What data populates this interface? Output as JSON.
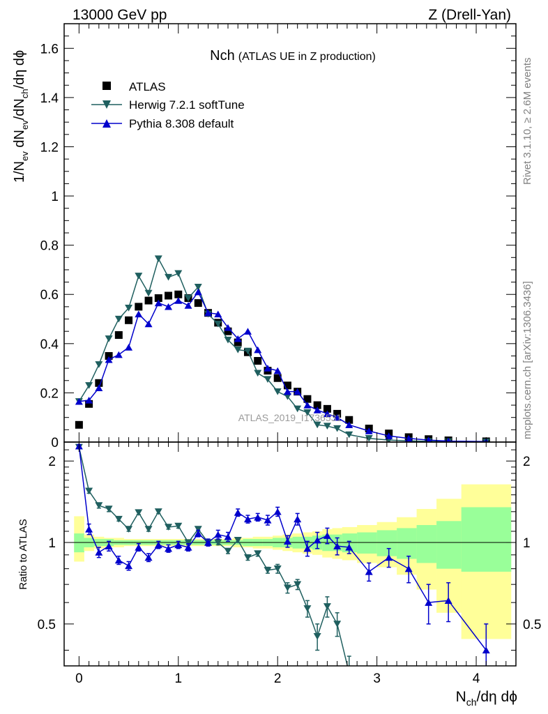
{
  "header": {
    "energy": "13000 GeV pp",
    "process": "Z (Drell-Yan)"
  },
  "side": {
    "rivet": "Rivet 3.1.10, ≥ 2.6M events",
    "mcplots": "mcplots.cern.ch [arXiv:1306.3436]"
  },
  "colors": {
    "atlas": "#000000",
    "herwig": "#1f5f5f",
    "pythia": "#0000cc",
    "band_outer": "#ffff99",
    "band_inner": "#99ff99"
  },
  "chart_data": [
    {
      "type": "line",
      "panel": "main",
      "title": "Nch",
      "subtitle": "(ATLAS UE in Z production)",
      "watermark": "ATLAS_2019_I1736531",
      "ylabel_parts": [
        "1/N",
        "ev",
        " dN",
        "ev",
        "/dN",
        "ch",
        "/dη dϕ"
      ],
      "xlabel_parts": [
        "N",
        "ch",
        "/dη dϕ"
      ],
      "xlim": [
        -0.15,
        4.4
      ],
      "ylim": [
        0,
        1.7
      ],
      "yticks": [
        0,
        0.2,
        0.4,
        0.6,
        0.8,
        1,
        1.2,
        1.4,
        1.6
      ],
      "ytick_labels": [
        "0",
        "0.2",
        "0.4",
        "0.6",
        "0.8",
        "1",
        "1.2",
        "1.4",
        "1.6"
      ],
      "xticks": [
        0,
        1,
        2,
        3,
        4
      ],
      "xtick_labels": [
        "0",
        "1",
        "2",
        "3",
        "4"
      ],
      "legend": [
        "ATLAS",
        "Herwig 7.2.1 softTune",
        "Pythia 8.308 default"
      ],
      "series": [
        {
          "name": "ATLAS",
          "x": [
            0,
            0.1,
            0.2,
            0.3,
            0.4,
            0.5,
            0.6,
            0.7,
            0.8,
            0.9,
            1.0,
            1.1,
            1.2,
            1.3,
            1.4,
            1.5,
            1.6,
            1.7,
            1.8,
            1.9,
            2.0,
            2.1,
            2.2,
            2.3,
            2.4,
            2.5,
            2.6,
            2.72,
            2.92,
            3.12,
            3.32,
            3.52,
            3.72,
            4.1
          ],
          "y": [
            0.07,
            0.155,
            0.24,
            0.35,
            0.435,
            0.495,
            0.55,
            0.575,
            0.585,
            0.595,
            0.6,
            0.585,
            0.565,
            0.525,
            0.485,
            0.45,
            0.405,
            0.365,
            0.33,
            0.29,
            0.26,
            0.23,
            0.205,
            0.175,
            0.15,
            0.135,
            0.115,
            0.09,
            0.055,
            0.035,
            0.02,
            0.012,
            0.007,
            0.003
          ]
        },
        {
          "name": "Herwig 7.2.1 softTune",
          "x": [
            0,
            0.1,
            0.2,
            0.3,
            0.4,
            0.5,
            0.6,
            0.7,
            0.8,
            0.9,
            1.0,
            1.1,
            1.2,
            1.3,
            1.4,
            1.5,
            1.6,
            1.7,
            1.8,
            1.9,
            2.0,
            2.1,
            2.2,
            2.3,
            2.4,
            2.5,
            2.6,
            2.72,
            2.92,
            3.12,
            3.32,
            3.52,
            3.72,
            4.1
          ],
          "y": [
            0.165,
            0.23,
            0.315,
            0.42,
            0.5,
            0.545,
            0.675,
            0.605,
            0.745,
            0.67,
            0.685,
            0.585,
            0.63,
            0.52,
            0.48,
            0.415,
            0.375,
            0.37,
            0.28,
            0.255,
            0.205,
            0.185,
            0.135,
            0.12,
            0.07,
            0.065,
            0.055,
            0.03,
            0.015,
            0.008,
            0.005,
            0.003,
            0.002,
            0.001
          ]
        },
        {
          "name": "Pythia 8.308 default",
          "x": [
            0,
            0.1,
            0.2,
            0.3,
            0.4,
            0.5,
            0.6,
            0.7,
            0.8,
            0.9,
            1.0,
            1.1,
            1.2,
            1.3,
            1.4,
            1.5,
            1.6,
            1.7,
            1.8,
            1.9,
            2.0,
            2.1,
            2.2,
            2.3,
            2.4,
            2.5,
            2.6,
            2.72,
            2.92,
            3.12,
            3.32,
            3.52,
            3.72,
            4.1
          ],
          "y": [
            0.165,
            0.17,
            0.22,
            0.335,
            0.355,
            0.385,
            0.52,
            0.48,
            0.565,
            0.55,
            0.575,
            0.555,
            0.61,
            0.525,
            0.52,
            0.465,
            0.42,
            0.45,
            0.375,
            0.3,
            0.29,
            0.205,
            0.205,
            0.15,
            0.13,
            0.115,
            0.1,
            0.07,
            0.045,
            0.025,
            0.015,
            0.008,
            0.004,
            0.002
          ]
        }
      ]
    },
    {
      "type": "line",
      "panel": "ratio",
      "ylabel": "Ratio to ATLAS",
      "xlim": [
        -0.15,
        4.4
      ],
      "ylim": [
        0.35,
        2.35
      ],
      "yticks": [
        0.5,
        1,
        2
      ],
      "ytick_labels": [
        "0.5",
        "1",
        "2"
      ],
      "reference": 1,
      "bands": {
        "edges": [
          -0.05,
          0.05,
          0.15,
          0.25,
          0.35,
          0.45,
          0.55,
          0.65,
          0.75,
          0.85,
          0.95,
          1.05,
          1.15,
          1.25,
          1.35,
          1.45,
          1.55,
          1.65,
          1.75,
          1.85,
          1.95,
          2.05,
          2.15,
          2.25,
          2.35,
          2.45,
          2.55,
          2.65,
          2.8,
          3.0,
          3.2,
          3.4,
          3.6,
          3.85,
          4.35
        ],
        "outer_lo": [
          0.85,
          0.93,
          0.95,
          0.96,
          0.96,
          0.97,
          0.97,
          0.97,
          0.97,
          0.97,
          0.97,
          0.97,
          0.97,
          0.97,
          0.97,
          0.97,
          0.96,
          0.96,
          0.95,
          0.95,
          0.94,
          0.93,
          0.92,
          0.91,
          0.9,
          0.88,
          0.87,
          0.86,
          0.84,
          0.81,
          0.76,
          0.67,
          0.55,
          0.44
        ],
        "outer_hi": [
          1.25,
          1.07,
          1.05,
          1.04,
          1.04,
          1.03,
          1.03,
          1.03,
          1.03,
          1.03,
          1.03,
          1.03,
          1.03,
          1.03,
          1.03,
          1.03,
          1.04,
          1.04,
          1.05,
          1.05,
          1.06,
          1.07,
          1.08,
          1.09,
          1.1,
          1.12,
          1.13,
          1.14,
          1.16,
          1.19,
          1.24,
          1.33,
          1.45,
          1.64
        ],
        "inner_lo": [
          0.92,
          0.96,
          0.97,
          0.97,
          0.98,
          0.98,
          0.98,
          0.98,
          0.98,
          0.98,
          0.98,
          0.98,
          0.98,
          0.98,
          0.98,
          0.98,
          0.98,
          0.97,
          0.97,
          0.97,
          0.96,
          0.96,
          0.95,
          0.95,
          0.94,
          0.93,
          0.93,
          0.92,
          0.91,
          0.89,
          0.87,
          0.84,
          0.8,
          0.78
        ],
        "inner_hi": [
          1.08,
          1.04,
          1.03,
          1.03,
          1.02,
          1.02,
          1.02,
          1.02,
          1.02,
          1.02,
          1.02,
          1.02,
          1.02,
          1.02,
          1.02,
          1.02,
          1.02,
          1.03,
          1.03,
          1.03,
          1.04,
          1.04,
          1.05,
          1.05,
          1.06,
          1.07,
          1.07,
          1.08,
          1.09,
          1.11,
          1.13,
          1.16,
          1.2,
          1.35
        ]
      },
      "series": [
        {
          "name": "Herwig 7.2.1 softTune",
          "x": [
            0,
            0.1,
            0.2,
            0.3,
            0.4,
            0.5,
            0.6,
            0.7,
            0.8,
            0.9,
            1.0,
            1.1,
            1.2,
            1.3,
            1.4,
            1.5,
            1.6,
            1.7,
            1.8,
            1.9,
            2.0,
            2.1,
            2.2,
            2.3,
            2.4,
            2.5,
            2.6,
            2.72
          ],
          "y": [
            2.25,
            1.55,
            1.37,
            1.33,
            1.22,
            1.12,
            1.29,
            1.12,
            1.3,
            1.14,
            1.15,
            1.0,
            1.12,
            1.0,
            1.0,
            0.93,
            1.02,
            0.88,
            0.91,
            0.79,
            0.8,
            0.68,
            0.7,
            0.57,
            0.45,
            0.58,
            0.5,
            0.33
          ],
          "err": [
            0.02,
            0.03,
            0.03,
            0.03,
            0.02,
            0.02,
            0.02,
            0.02,
            0.02,
            0.02,
            0.02,
            0.02,
            0.02,
            0.02,
            0.02,
            0.02,
            0.02,
            0.02,
            0.02,
            0.02,
            0.03,
            0.03,
            0.03,
            0.04,
            0.05,
            0.05,
            0.05,
            0.05
          ]
        },
        {
          "name": "Pythia 8.308 default",
          "x": [
            0,
            0.1,
            0.2,
            0.3,
            0.4,
            0.5,
            0.6,
            0.7,
            0.8,
            0.9,
            1.0,
            1.1,
            1.2,
            1.3,
            1.4,
            1.5,
            1.6,
            1.7,
            1.8,
            1.9,
            2.0,
            2.1,
            2.2,
            2.3,
            2.4,
            2.5,
            2.6,
            2.72,
            2.92,
            3.12,
            3.32,
            3.52,
            3.72,
            4.1
          ],
          "y": [
            2.27,
            1.12,
            0.92,
            0.97,
            0.86,
            0.82,
            0.96,
            0.88,
            0.98,
            0.95,
            0.98,
            0.96,
            1.08,
            1.0,
            1.07,
            1.05,
            1.29,
            1.22,
            1.24,
            1.21,
            1.3,
            1.01,
            1.22,
            0.95,
            1.02,
            1.06,
            0.97,
            0.96,
            0.78,
            0.88,
            0.8,
            0.6,
            0.61,
            0.4
          ],
          "err": [
            0.03,
            0.05,
            0.04,
            0.04,
            0.03,
            0.03,
            0.03,
            0.03,
            0.03,
            0.03,
            0.03,
            0.03,
            0.03,
            0.03,
            0.04,
            0.04,
            0.04,
            0.04,
            0.04,
            0.05,
            0.05,
            0.05,
            0.06,
            0.06,
            0.07,
            0.07,
            0.07,
            0.05,
            0.06,
            0.07,
            0.09,
            0.1,
            0.1,
            0.1
          ]
        }
      ]
    }
  ]
}
